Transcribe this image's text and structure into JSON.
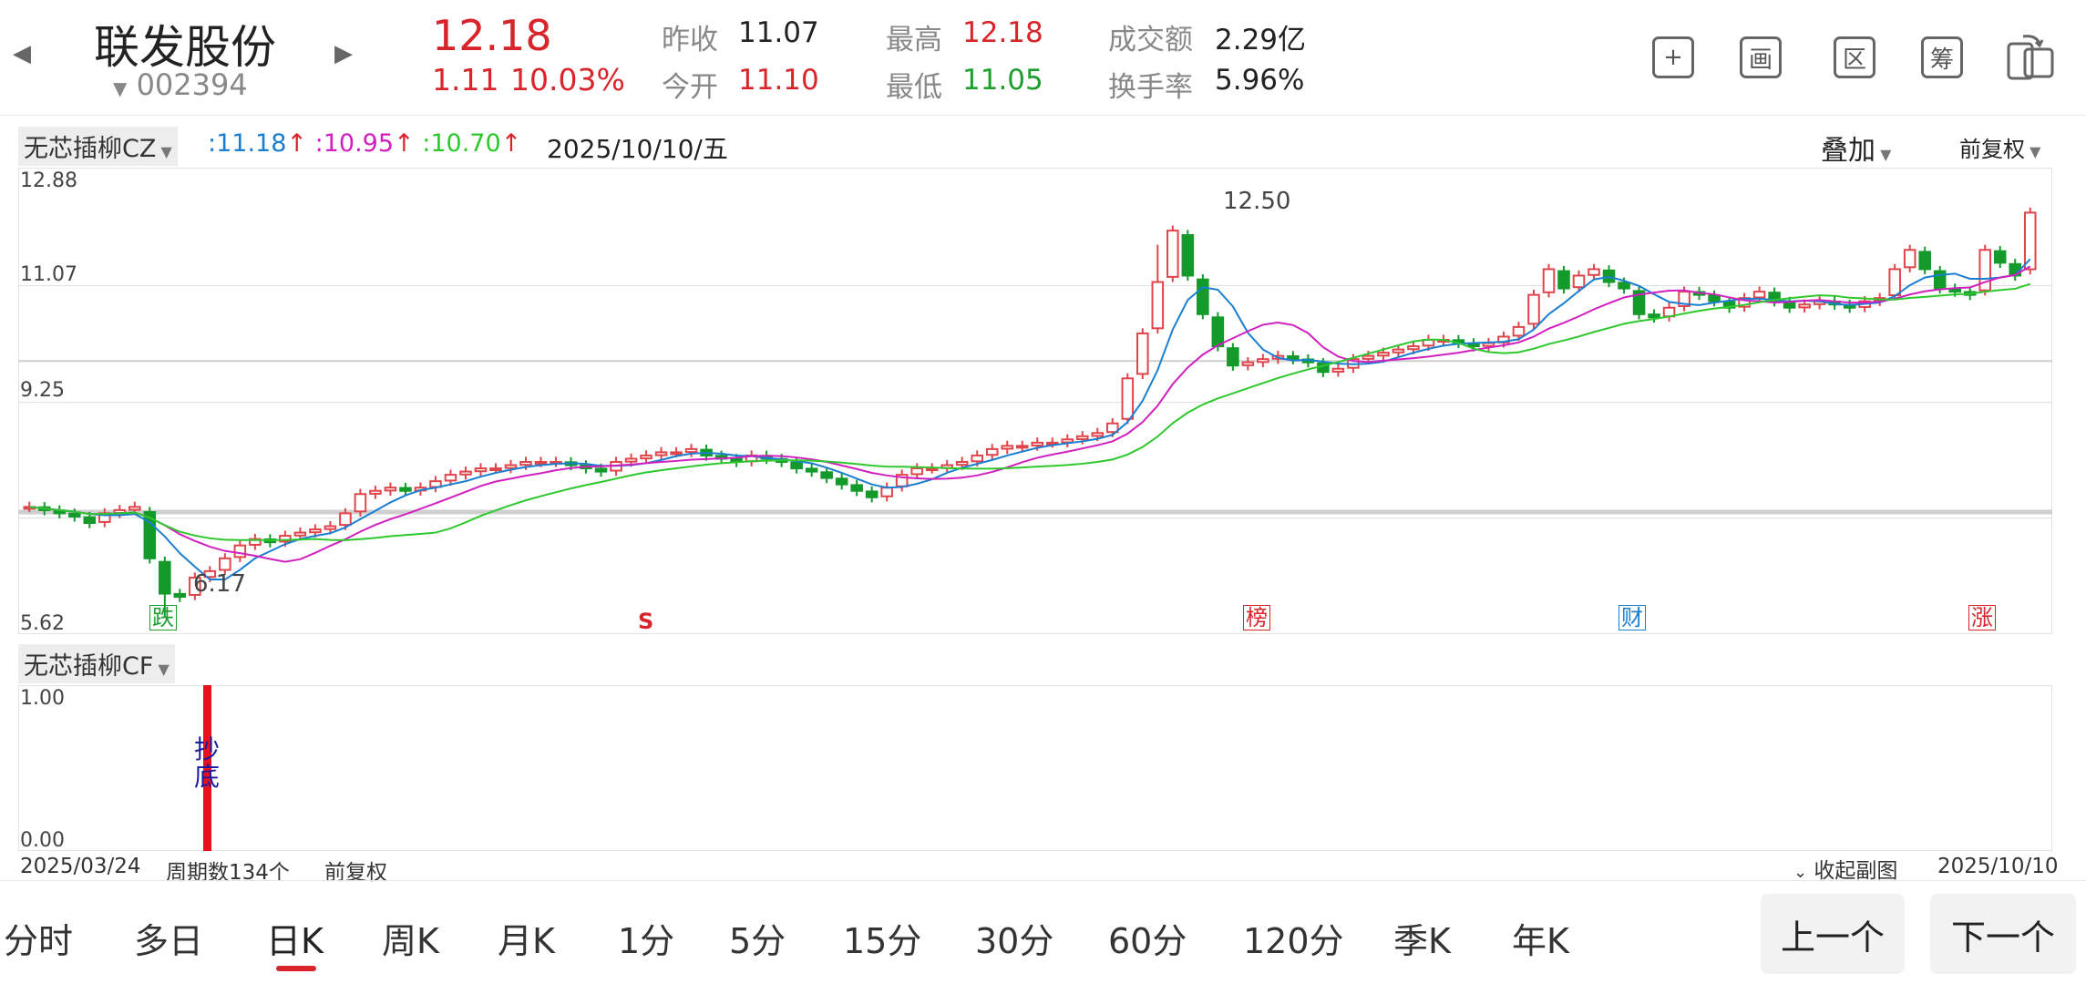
{
  "header": {
    "stock_name": "联发股份",
    "stock_code": "002394",
    "price": "12.18",
    "change": "1.11",
    "change_pct": "10.03%",
    "quotes": [
      {
        "label": "昨收",
        "value": "11.07",
        "color": "normal"
      },
      {
        "label": "今开",
        "value": "11.10",
        "color": "red"
      },
      {
        "label": "最高",
        "value": "12.18",
        "color": "red"
      },
      {
        "label": "最低",
        "value": "11.05",
        "color": "green"
      },
      {
        "label": "成交额",
        "value": "2.29亿",
        "color": "normal"
      },
      {
        "label": "换手率",
        "value": "5.96%",
        "color": "normal"
      }
    ],
    "tools": [
      {
        "name": "add-icon",
        "glyph": "+"
      },
      {
        "name": "draw-icon",
        "glyph": "画"
      },
      {
        "name": "range-icon",
        "glyph": "区"
      },
      {
        "name": "chip-icon",
        "glyph": "筹"
      },
      {
        "name": "rotate-screen-icon",
        "glyph": ""
      }
    ]
  },
  "main_chart": {
    "indicator": "无芯插柳CZ",
    "ma_values": [
      {
        "text": ":11.18",
        "color": "#1a7fd0"
      },
      {
        "text": ":10.95",
        "color": "#d020c0"
      },
      {
        "text": ":10.70",
        "color": "#2ec82e"
      }
    ],
    "date": "2025/10/10/五",
    "overlay_label": "叠加",
    "adjust_label": "前复权",
    "y_ticks": [
      "12.88",
      "11.07",
      "9.25",
      "5.62"
    ],
    "high_label": "12.50",
    "low_label": "6.17",
    "event_markers": [
      {
        "text": "跌",
        "color": "#1e9e2e"
      },
      {
        "text": "S",
        "color": "#d8252b"
      },
      {
        "text": "榜",
        "color": "#d8252b"
      },
      {
        "text": "财",
        "color": "#1a7fd0"
      },
      {
        "text": "涨",
        "color": "#d8252b"
      }
    ]
  },
  "sub_chart": {
    "indicator": "无芯插柳CF",
    "y_ticks": [
      "1.00",
      "0.00"
    ],
    "signal_label": "抄底"
  },
  "footer": {
    "start_date": "2025/03/24",
    "period_count": "周期数134个",
    "adjust": "前复权",
    "collapse_label": "收起副图",
    "end_date": "2025/10/10"
  },
  "tabs": [
    "分时",
    "多日",
    "日K",
    "周K",
    "月K",
    "1分",
    "5分",
    "15分",
    "30分",
    "60分",
    "120分",
    "季K",
    "年K"
  ],
  "active_tab": "日K",
  "nav": {
    "prev": "上一个",
    "next": "下一个"
  },
  "chart_data": {
    "type": "candlestick",
    "ylim": [
      5.62,
      12.88
    ],
    "candles_close_approx": [
      7.6,
      7.55,
      7.5,
      7.45,
      7.35,
      7.5,
      7.55,
      7.6,
      6.8,
      6.25,
      6.2,
      6.5,
      6.6,
      6.8,
      7.0,
      7.1,
      7.05,
      7.15,
      7.2,
      7.25,
      7.3,
      7.5,
      7.8,
      7.85,
      7.9,
      7.85,
      7.9,
      8.0,
      8.1,
      8.15,
      8.2,
      8.2,
      8.25,
      8.3,
      8.3,
      8.3,
      8.25,
      8.2,
      8.15,
      8.3,
      8.35,
      8.4,
      8.45,
      8.45,
      8.5,
      8.4,
      8.35,
      8.3,
      8.4,
      8.35,
      8.3,
      8.2,
      8.15,
      8.05,
      7.95,
      7.85,
      7.75,
      7.9,
      8.1,
      8.2,
      8.2,
      8.25,
      8.3,
      8.4,
      8.5,
      8.55,
      8.55,
      8.6,
      8.6,
      8.65,
      8.7,
      8.75,
      8.9,
      9.6,
      10.3,
      11.1,
      11.9,
      11.2,
      10.6,
      10.1,
      9.8,
      9.85,
      9.9,
      9.95,
      9.9,
      9.85,
      9.7,
      9.75,
      9.9,
      9.95,
      10.0,
      10.05,
      10.1,
      10.2,
      10.2,
      10.15,
      10.1,
      10.15,
      10.25,
      10.4,
      10.9,
      11.3,
      11.0,
      11.2,
      11.3,
      11.1,
      11.0,
      10.6,
      10.55,
      10.7,
      10.95,
      10.9,
      10.8,
      10.7,
      10.85,
      10.95,
      10.8,
      10.7,
      10.75,
      10.8,
      10.75,
      10.7,
      10.8,
      10.85,
      11.3,
      11.6,
      11.3,
      11.0,
      10.95,
      10.9,
      11.6,
      11.4,
      11.2,
      12.18
    ],
    "series": [
      {
        "name": "MA1",
        "color": "#1a7fd0"
      },
      {
        "name": "MA2",
        "color": "#d020c0"
      },
      {
        "name": "MA3",
        "color": "#2ec82e"
      }
    ]
  }
}
